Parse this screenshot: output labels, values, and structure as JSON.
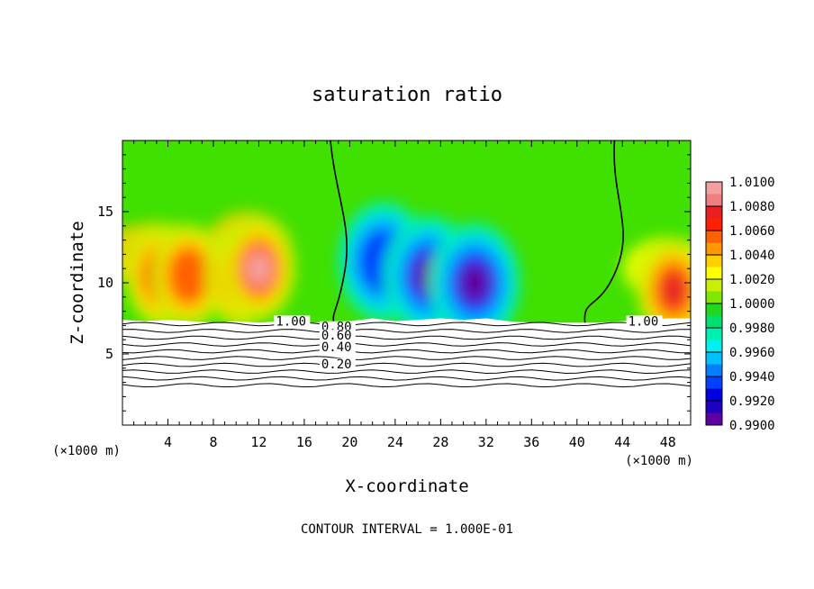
{
  "chart_data": {
    "type": "heatmap",
    "title": "saturation ratio",
    "xlabel": "X-coordinate",
    "ylabel": "Z-coordinate",
    "x_unit_left": "(×1000 m)",
    "x_unit_right": "(×1000 m)",
    "xlim": [
      0,
      50
    ],
    "ylim": [
      0,
      20
    ],
    "x_ticks": [
      4,
      8,
      12,
      16,
      20,
      24,
      28,
      32,
      36,
      40,
      44,
      48
    ],
    "y_ticks": [
      5,
      10,
      15
    ],
    "colorbar": {
      "levels": [
        "1.0100",
        "1.0080",
        "1.0060",
        "1.0040",
        "1.0020",
        "1.0000",
        "0.9980",
        "0.9960",
        "0.9940",
        "0.9920",
        "0.9900"
      ],
      "colors": [
        "#f4a0a0",
        "#f08080",
        "#e82020",
        "#ff2000",
        "#ff6000",
        "#ff9800",
        "#ffd000",
        "#ffff00",
        "#c8f000",
        "#80e800",
        "#20d820",
        "#00e070",
        "#00f0b0",
        "#00f0f0",
        "#00c0ff",
        "#0080ff",
        "#0040ff",
        "#0000e0",
        "#2000c0",
        "#6000a0"
      ]
    },
    "contour_interval": "CONTOUR INTERVAL = 1.000E-01",
    "contour_labels": [
      "1.00",
      "1.00",
      "0.80",
      "0.60",
      "0.40",
      "0.20"
    ],
    "surface_points": [
      [
        0,
        7.4
      ],
      [
        2,
        7.3
      ],
      [
        4,
        7.4
      ],
      [
        6,
        7.3
      ],
      [
        8,
        7.2
      ],
      [
        10,
        7.3
      ],
      [
        12,
        7.2
      ],
      [
        14,
        7.3
      ],
      [
        16,
        7.2
      ],
      [
        18,
        7.2
      ],
      [
        20,
        7.3
      ],
      [
        22,
        7.5
      ],
      [
        24,
        7.3
      ],
      [
        26,
        7.4
      ],
      [
        28,
        7.5
      ],
      [
        30,
        7.4
      ],
      [
        32,
        7.5
      ],
      [
        34,
        7.3
      ],
      [
        36,
        7.2
      ],
      [
        38,
        7.2
      ],
      [
        40,
        7.2
      ],
      [
        42,
        7.2
      ],
      [
        44,
        7.3
      ],
      [
        46,
        7.4
      ],
      [
        48,
        7.5
      ],
      [
        50,
        7.5
      ]
    ],
    "features": [
      {
        "x": 3.5,
        "z": 10.5,
        "value": 1.008
      },
      {
        "x": 5.8,
        "z": 10.5,
        "value": 1.006
      },
      {
        "x": 10.5,
        "z": 10.5,
        "value": 1.008
      },
      {
        "x": 12.0,
        "z": 11.0,
        "value": 1.01
      },
      {
        "x": 23.0,
        "z": 11.5,
        "value": 0.994
      },
      {
        "x": 27.0,
        "z": 10.5,
        "value": 0.99
      },
      {
        "x": 31.0,
        "z": 10.0,
        "value": 0.99
      },
      {
        "x": 48.5,
        "z": 9.5,
        "value": 1.008
      }
    ],
    "bottom_contour_levels": [
      1.0,
      0.9,
      0.8,
      0.7,
      0.6,
      0.5,
      0.4,
      0.3,
      0.2,
      0.1
    ]
  }
}
